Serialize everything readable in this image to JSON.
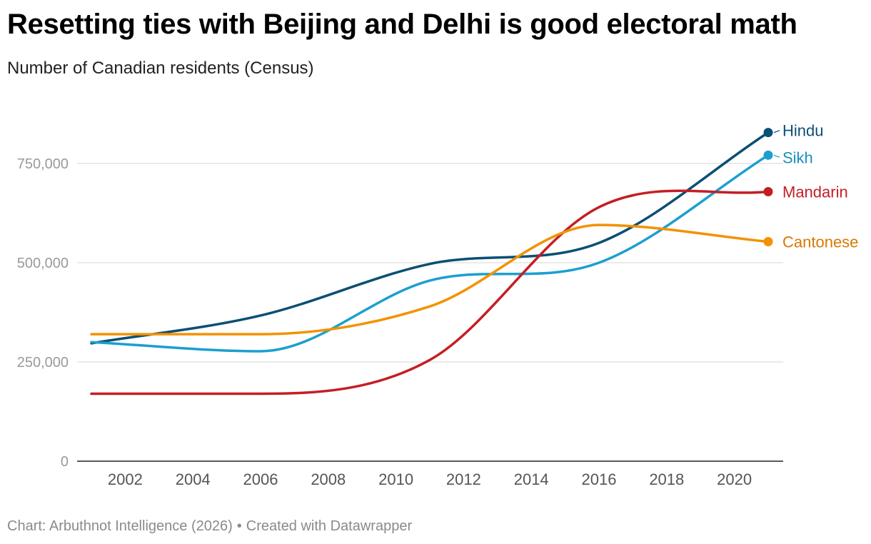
{
  "title": "Resetting ties with Beijing and Delhi is good electoral math",
  "subtitle": "Number of Canadian residents (Census)",
  "footer": {
    "source": "Chart: Arbuthnot Intelligence (2026)",
    "separator": "•",
    "credit": "Created with Datawrapper"
  },
  "chart_data": {
    "type": "line",
    "title": "Resetting ties with Beijing and Delhi is good electoral math",
    "subtitle": "Number of Canadian residents (Census)",
    "xlabel": "",
    "ylabel": "",
    "xlim": [
      2001,
      2021
    ],
    "ylim": [
      0,
      850000
    ],
    "x_ticks": [
      2002,
      2004,
      2006,
      2008,
      2010,
      2012,
      2014,
      2016,
      2018,
      2020
    ],
    "y_ticks": [
      0,
      250000,
      500000,
      750000
    ],
    "y_tick_labels": [
      "0",
      "250,000",
      "500,000",
      "750,000"
    ],
    "x": [
      2001,
      2006,
      2011,
      2016,
      2021
    ],
    "series": [
      {
        "name": "Hindu",
        "color": "#0b4f74",
        "values": [
          297000,
          367000,
          497000,
          550000,
          828000
        ]
      },
      {
        "name": "Sikh",
        "color": "#1c9fcf",
        "values": [
          300000,
          277000,
          455000,
          500000,
          771000
        ]
      },
      {
        "name": "Mandarin",
        "color": "#c41e24",
        "values": [
          170000,
          170000,
          255000,
          640000,
          679000
        ]
      },
      {
        "name": "Cantonese",
        "color": "#f39200",
        "values": [
          320000,
          320000,
          390000,
          595000,
          553000
        ]
      }
    ],
    "label_colors": {
      "Hindu": "#0b4f74",
      "Sikh": "#1a8fbd",
      "Mandarin": "#c41e24",
      "Cantonese": "#d87a00"
    },
    "grid": true,
    "legend": "direct labels at line ends (right)"
  }
}
